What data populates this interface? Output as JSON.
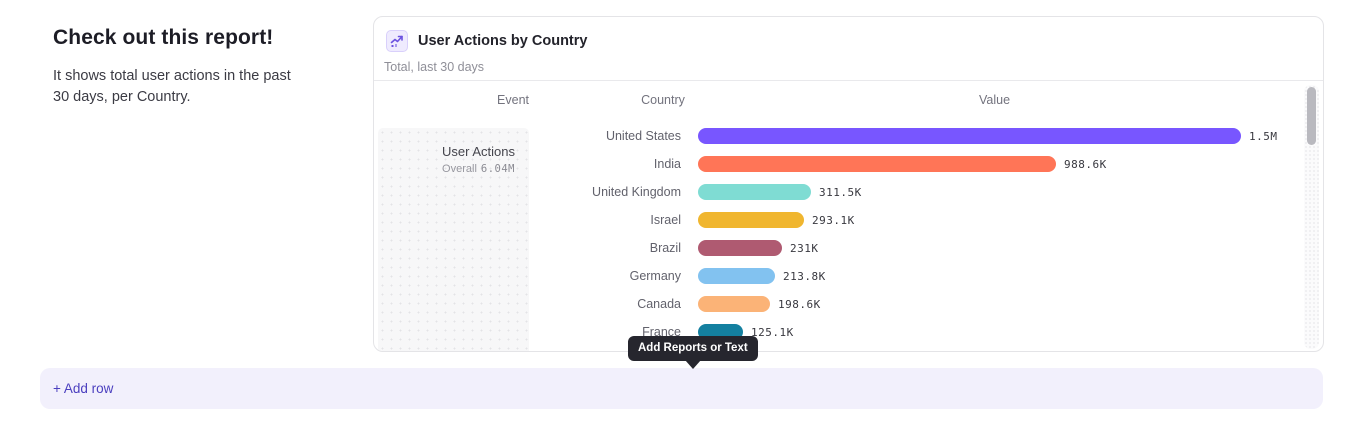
{
  "intro": {
    "heading": "Check out this report!",
    "description": "It shows total user actions in the past 30 days, per Country."
  },
  "report_card": {
    "icon": "line-chart-icon",
    "title": "User Actions by Country",
    "subtitle": "Total, last 30 days",
    "columns": {
      "event": "Event",
      "country": "Country",
      "value": "Value"
    },
    "event_cell": {
      "name": "User Actions",
      "overall_label": "Overall",
      "overall_value": "6.04M"
    }
  },
  "chart_data": {
    "type": "bar",
    "orientation": "horizontal",
    "title": "User Actions by Country",
    "subtitle": "Total, last 30 days",
    "categories": [
      "United States",
      "India",
      "United Kingdom",
      "Israel",
      "Brazil",
      "Germany",
      "Canada",
      "France"
    ],
    "values": [
      1500000,
      988600,
      311500,
      293100,
      231000,
      213800,
      198600,
      125100
    ],
    "value_labels": [
      "1.5M",
      "988.6K",
      "311.5K",
      "293.1K",
      "231K",
      "213.8K",
      "198.6K",
      "125.1K"
    ],
    "colors": [
      "#7856ff",
      "#ff7557",
      "#7fdcd3",
      "#f0b62f",
      "#af5a71",
      "#82c2f0",
      "#fbb377",
      "#1480a0"
    ],
    "xlim": [
      0,
      1500000
    ],
    "grid": false,
    "legend": false,
    "overall_total": "6.04M",
    "series_name": "User Actions"
  },
  "tooltip": {
    "label": "Add Reports or Text"
  },
  "add_row": {
    "label": "+ Add row"
  },
  "colors": {
    "accent": "#4b3fbf",
    "card_border": "#e4e4e7",
    "tooltip_bg": "#26262e",
    "add_row_bg": "#f2f0fc",
    "icon_purple": "#6c52e0"
  }
}
